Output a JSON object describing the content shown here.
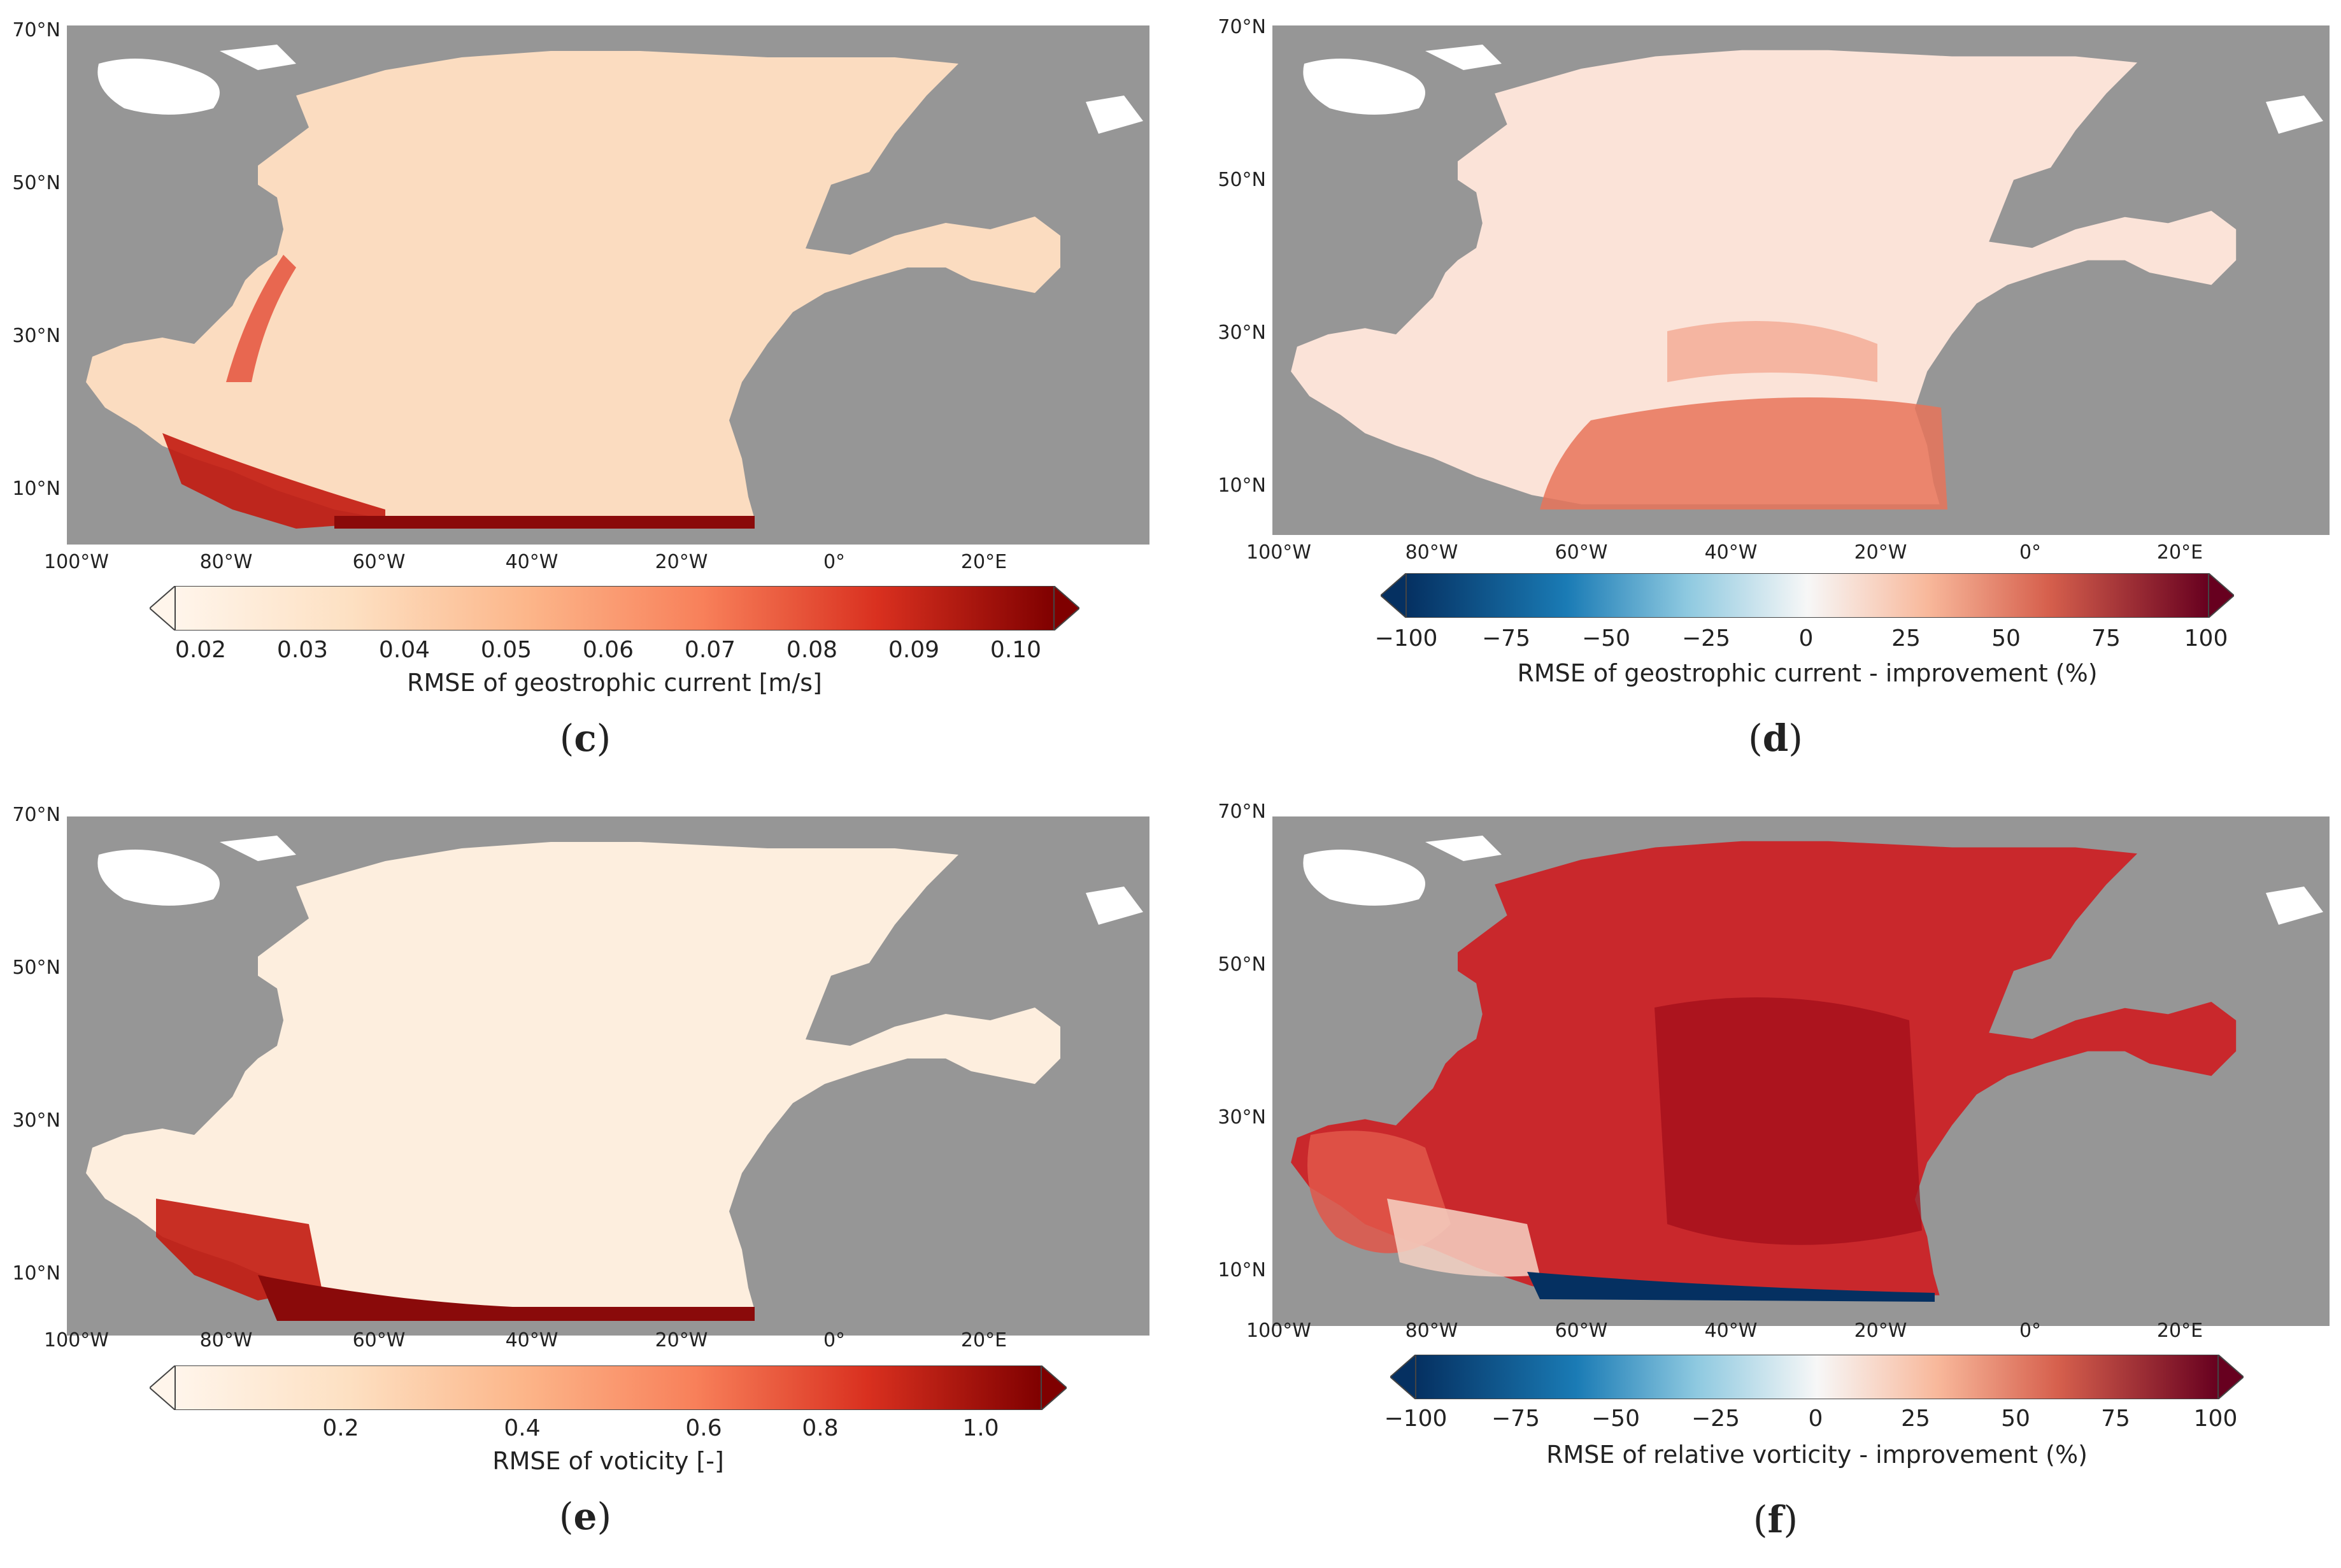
{
  "panels": [
    {
      "id": "c",
      "label_open": "(",
      "label_letter": "c",
      "label_close": ")",
      "lat_ticks": [
        "70°N",
        "50°N",
        "30°N",
        "10°N"
      ],
      "lon_ticks": [
        "100°W",
        "80°W",
        "60°W",
        "40°W",
        "20°W",
        "0°",
        "20°E"
      ],
      "colorbar": {
        "scale": "sequential-reds",
        "extend": "both",
        "ticks": [
          "0.02",
          "0.03",
          "0.04",
          "0.05",
          "0.06",
          "0.07",
          "0.08",
          "0.09",
          "0.10"
        ],
        "label": "RMSE of geostrophic current [m/s]"
      },
      "field_summary": "low error (0.02–0.04) in open ocean, high (0.08–0.10) in Caribbean and near equatorial band"
    },
    {
      "id": "d",
      "label_open": "(",
      "label_letter": "d",
      "label_close": ")",
      "lat_ticks": [
        "70°N",
        "50°N",
        "30°N",
        "10°N"
      ],
      "lon_ticks": [
        "100°W",
        "80°W",
        "60°W",
        "40°W",
        "20°W",
        "0°",
        "20°E"
      ],
      "colorbar": {
        "scale": "diverging-blue-red",
        "extend": "both",
        "ticks": [
          "−100",
          "−75",
          "−50",
          "−25",
          "0",
          "25",
          "50",
          "75",
          "100"
        ],
        "label": "RMSE of geostrophic current - improvement (%)"
      },
      "field_summary": "mostly small positive improvement (0–25%), stronger (~50%) in southern tropical band"
    },
    {
      "id": "e",
      "label_open": "(",
      "label_letter": "e",
      "label_close": ")",
      "lat_ticks": [
        "70°N",
        "50°N",
        "30°N",
        "10°N"
      ],
      "lon_ticks": [
        "100°W",
        "80°W",
        "60°W",
        "40°W",
        "20°W",
        "0°",
        "20°E"
      ],
      "colorbar": {
        "scale": "sequential-reds",
        "extend": "both",
        "ticks": [
          "0.2",
          "0.4",
          "0.6",
          "0.8",
          "1.0"
        ],
        "label": "RMSE of voticity [-]"
      },
      "field_summary": "very low error in most of the basin, high (~1.0) in Caribbean and near-equator band"
    },
    {
      "id": "f",
      "label_open": "(",
      "label_letter": "f",
      "label_close": ")",
      "lat_ticks": [
        "70°N",
        "50°N",
        "30°N",
        "10°N"
      ],
      "lon_ticks": [
        "100°W",
        "80°W",
        "60°W",
        "40°W",
        "20°W",
        "0°",
        "20°E"
      ],
      "colorbar": {
        "scale": "diverging-blue-red",
        "extend": "both",
        "ticks": [
          "−100",
          "−75",
          "−50",
          "−25",
          "0",
          "25",
          "50",
          "75",
          "100"
        ],
        "label": "RMSE of relative vorticity - improvement (%)"
      },
      "field_summary": "strong positive improvement (~75%) across basin, negative (~−100%) thin band near 7°N"
    }
  ],
  "colors": {
    "land": "#969696",
    "lakes": "#ffffff",
    "reds_low": "#fff5eb",
    "reds_high": "#7f0000",
    "div_neg": "#053061",
    "div_mid": "#f7f7f7",
    "div_pos": "#67001f"
  }
}
